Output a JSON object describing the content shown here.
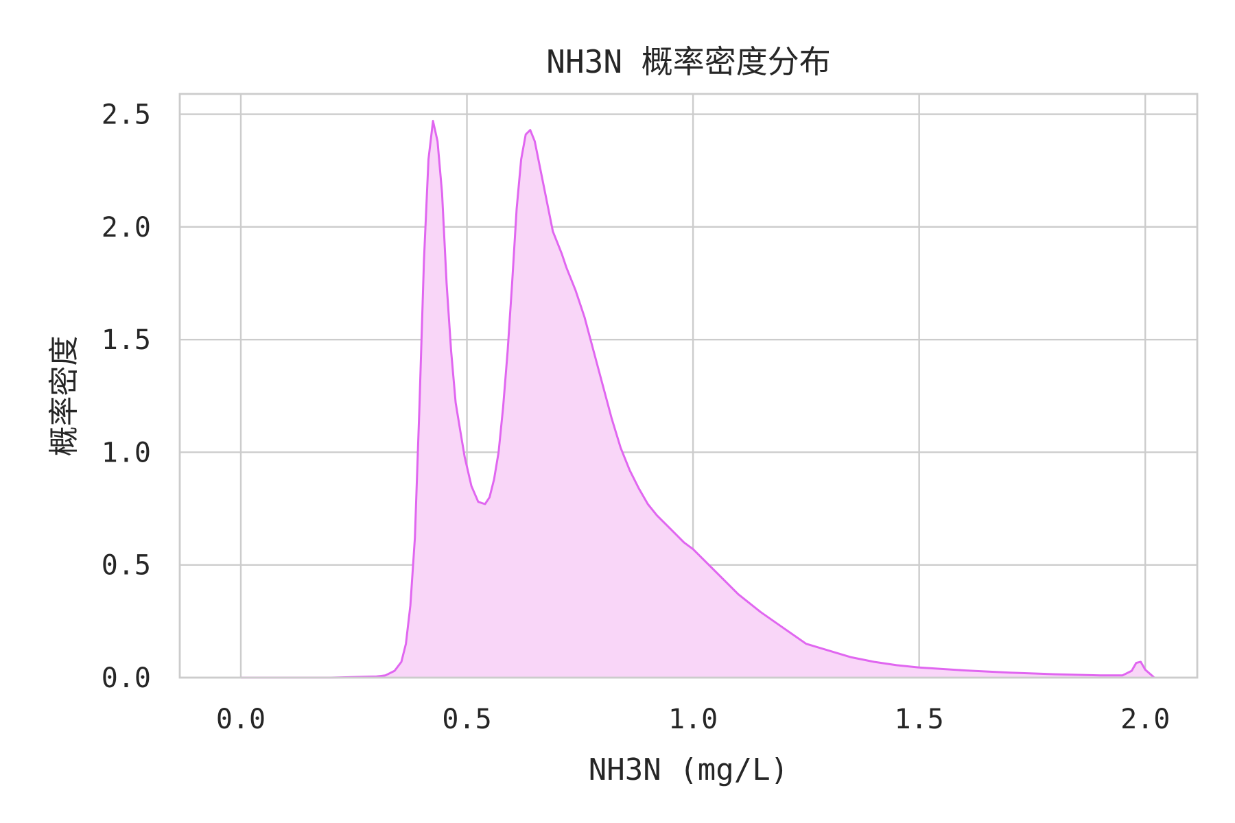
{
  "chart_data": {
    "type": "area",
    "title": "NH3N 概率密度分布",
    "xlabel": "NH3N (mg/L)",
    "ylabel": "概率密度",
    "xlim": [
      -0.135,
      2.115
    ],
    "ylim": [
      0,
      2.59
    ],
    "xticks": [
      0.0,
      0.5,
      1.0,
      1.5,
      2.0
    ],
    "xtick_labels": [
      "0.0",
      "0.5",
      "1.0",
      "1.5",
      "2.0"
    ],
    "yticks": [
      0.0,
      0.5,
      1.0,
      1.5,
      2.0,
      2.5
    ],
    "ytick_labels": [
      "0.0",
      "0.5",
      "1.0",
      "1.5",
      "2.0",
      "2.5"
    ],
    "grid": true,
    "legend": "none",
    "colors": {
      "line": "#e066f0",
      "fill": "#f9d6f8"
    },
    "series": [
      {
        "x": [
          0.0,
          0.2,
          0.3,
          0.32,
          0.34,
          0.355,
          0.365,
          0.375,
          0.385,
          0.395,
          0.405,
          0.415,
          0.425,
          0.435,
          0.445,
          0.455,
          0.465,
          0.475,
          0.485,
          0.495,
          0.51,
          0.525,
          0.54,
          0.55,
          0.56,
          0.57,
          0.58,
          0.59,
          0.6,
          0.61,
          0.62,
          0.63,
          0.64,
          0.65,
          0.66,
          0.67,
          0.68,
          0.69,
          0.7,
          0.71,
          0.72,
          0.73,
          0.74,
          0.76,
          0.78,
          0.8,
          0.82,
          0.84,
          0.86,
          0.88,
          0.9,
          0.92,
          0.95,
          0.98,
          1.0,
          1.03,
          1.06,
          1.1,
          1.15,
          1.2,
          1.25,
          1.3,
          1.35,
          1.4,
          1.45,
          1.5,
          1.6,
          1.7,
          1.8,
          1.9,
          1.95,
          1.97,
          1.98,
          1.99,
          2.0,
          2.02
        ],
        "y": [
          0.0,
          0.0,
          0.005,
          0.01,
          0.03,
          0.07,
          0.15,
          0.32,
          0.62,
          1.2,
          1.85,
          2.3,
          2.47,
          2.38,
          2.15,
          1.75,
          1.45,
          1.22,
          1.1,
          0.98,
          0.85,
          0.78,
          0.77,
          0.8,
          0.88,
          1.0,
          1.2,
          1.45,
          1.75,
          2.08,
          2.3,
          2.41,
          2.43,
          2.38,
          2.28,
          2.18,
          2.08,
          1.98,
          1.93,
          1.88,
          1.82,
          1.77,
          1.72,
          1.6,
          1.45,
          1.3,
          1.15,
          1.02,
          0.92,
          0.84,
          0.77,
          0.72,
          0.66,
          0.6,
          0.57,
          0.51,
          0.45,
          0.37,
          0.29,
          0.22,
          0.15,
          0.12,
          0.09,
          0.07,
          0.055,
          0.045,
          0.032,
          0.022,
          0.015,
          0.01,
          0.01,
          0.03,
          0.065,
          0.07,
          0.035,
          0.0
        ]
      }
    ]
  }
}
